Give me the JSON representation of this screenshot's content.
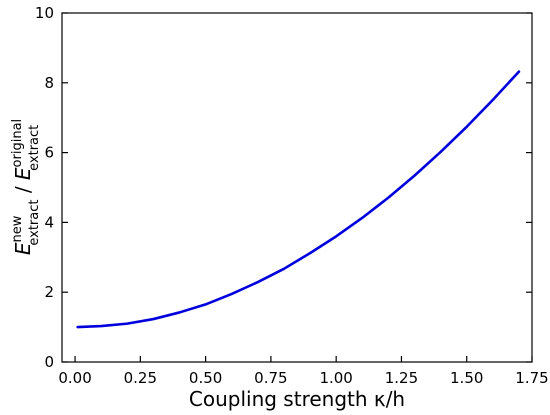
{
  "chart_data": {
    "type": "line",
    "xlabel": "Coupling strength κ/h",
    "ylabel": "E_extract^new / E_extract^original",
    "ylabel_parts": {
      "base1": "E",
      "sup1": "new",
      "sub1": "extract",
      "sep": " / ",
      "base2": "E",
      "sup2": "original",
      "sub2": "extract"
    },
    "xlim": [
      -0.05,
      1.75
    ],
    "ylim": [
      0,
      10
    ],
    "xticks": [
      0.0,
      0.25,
      0.5,
      0.75,
      1.0,
      1.25,
      1.5,
      1.75
    ],
    "xtick_labels": [
      "0.00",
      "0.25",
      "0.50",
      "0.75",
      "1.00",
      "1.25",
      "1.50",
      "1.75"
    ],
    "yticks": [
      0,
      2,
      4,
      6,
      8,
      10
    ],
    "ytick_labels": [
      "0",
      "2",
      "4",
      "6",
      "8",
      "10"
    ],
    "grid": false,
    "series": [
      {
        "color": "#0000dd",
        "x": [
          0.01,
          0.1,
          0.2,
          0.3,
          0.4,
          0.5,
          0.6,
          0.7,
          0.8,
          0.9,
          1.0,
          1.1,
          1.2,
          1.3,
          1.4,
          1.5,
          1.6,
          1.7
        ],
        "y": [
          1.0,
          1.03,
          1.1,
          1.23,
          1.42,
          1.65,
          1.95,
          2.29,
          2.67,
          3.12,
          3.6,
          4.13,
          4.71,
          5.34,
          6.02,
          6.74,
          7.51,
          8.32
        ]
      }
    ]
  }
}
